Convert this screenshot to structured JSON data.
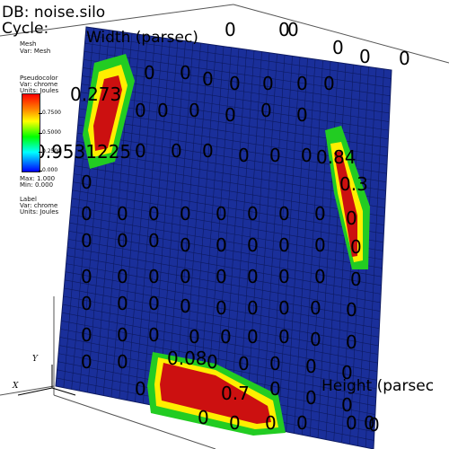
{
  "header": {
    "db": "DB: noise.silo",
    "cycle": "Cycle:",
    "mesh_label": "Mesh",
    "mesh_var": "Var: Mesh"
  },
  "legend": {
    "title": "Pseudocolor",
    "var": "Var: chrome",
    "units": "Units: Joules",
    "ticks": [
      "0.7500",
      "0.5000",
      "0.2500",
      "0.000"
    ],
    "max": "Max: 1.000",
    "min": "Min: 0.000"
  },
  "label_legend": {
    "title": "Label",
    "var": "Var: chrome",
    "units": "Units: Joules"
  },
  "axes": {
    "x_label": "X",
    "y_label": "Y",
    "right_title": "Height (parsec",
    "top_title": "Width (parsec)"
  },
  "overlay_numbers": {
    "left_top": "0.273",
    "left_mid": "0.9531225",
    "right_mid": "0.84",
    "right_low": "0.3",
    "bottom_mid": "0.08",
    "bottom_val": "0.7",
    "zero": "0"
  },
  "colors": {
    "plane": "#1a2f9a",
    "grid": "#0d1a60",
    "hot": "#cc1010",
    "warm": "#ffee00",
    "mid": "#22cc22",
    "cool": "#22ccee"
  }
}
